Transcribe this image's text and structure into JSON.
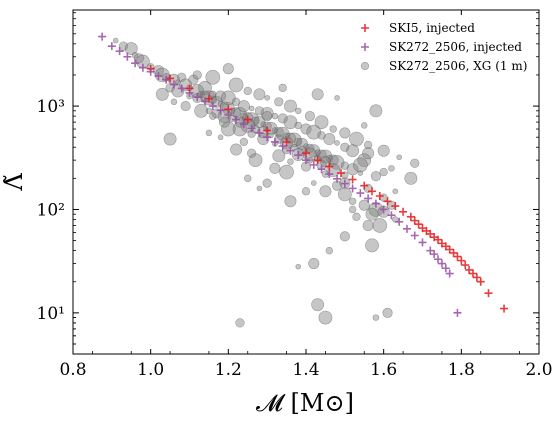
{
  "chart_data": {
    "type": "scatter",
    "xlabel": "𝓜 [M⊙]",
    "ylabel": "Λ̃",
    "xlim": [
      0.8,
      2.0
    ],
    "ylim": [
      4,
      8500
    ],
    "yscale": "log",
    "grid": false,
    "legend": "top-right",
    "x_ticks": [
      {
        "value": 0.8,
        "label": "0.8"
      },
      {
        "value": 1.0,
        "label": "1.0"
      },
      {
        "value": 1.2,
        "label": "1.2"
      },
      {
        "value": 1.4,
        "label": "1.4"
      },
      {
        "value": 1.6,
        "label": "1.6"
      },
      {
        "value": 1.8,
        "label": "1.8"
      },
      {
        "value": 2.0,
        "label": "2.0"
      }
    ],
    "y_ticks": [
      {
        "value": 10,
        "label": "10¹"
      },
      {
        "value": 100,
        "label": "10²"
      },
      {
        "value": 1000,
        "label": "10³"
      }
    ],
    "series": [
      {
        "name": "SK272_2506, XG (1 m)",
        "marker": "circle",
        "color": "#808080",
        "points": [
          [
            0.91,
            4300
          ],
          [
            0.93,
            3800
          ],
          [
            0.95,
            3600
          ],
          [
            0.96,
            3100
          ],
          [
            0.97,
            2900
          ],
          [
            0.98,
            2700
          ],
          [
            1.0,
            2400
          ],
          [
            1.02,
            2200
          ],
          [
            1.03,
            2000
          ],
          [
            1.04,
            1900
          ],
          [
            1.06,
            1800
          ],
          [
            1.07,
            1700
          ],
          [
            1.08,
            1900
          ],
          [
            1.09,
            1600
          ],
          [
            1.1,
            1500
          ],
          [
            1.11,
            1800
          ],
          [
            1.12,
            1400
          ],
          [
            1.13,
            1300
          ],
          [
            1.14,
            1250
          ],
          [
            1.15,
            1200
          ],
          [
            1.16,
            1150
          ],
          [
            1.17,
            1100
          ],
          [
            1.18,
            1050
          ],
          [
            1.19,
            1000
          ],
          [
            1.2,
            950
          ],
          [
            1.21,
            900
          ],
          [
            1.22,
            870
          ],
          [
            1.23,
            840
          ],
          [
            1.24,
            800
          ],
          [
            1.25,
            770
          ],
          [
            1.26,
            740
          ],
          [
            1.27,
            720
          ],
          [
            1.28,
            700
          ],
          [
            1.29,
            670
          ],
          [
            1.3,
            640
          ],
          [
            1.31,
            610
          ],
          [
            1.32,
            580
          ],
          [
            1.33,
            560
          ],
          [
            1.34,
            540
          ],
          [
            1.35,
            510
          ],
          [
            1.36,
            490
          ],
          [
            1.37,
            470
          ],
          [
            1.38,
            450
          ],
          [
            1.39,
            430
          ],
          [
            1.4,
            410
          ],
          [
            1.41,
            390
          ],
          [
            1.42,
            370
          ],
          [
            1.43,
            355
          ],
          [
            1.44,
            340
          ],
          [
            1.45,
            325
          ],
          [
            1.46,
            310
          ],
          [
            1.47,
            300
          ],
          [
            1.48,
            285
          ],
          [
            1.5,
            265
          ],
          [
            1.52,
            245
          ],
          [
            1.54,
            225
          ],
          [
            1.05,
            1500
          ],
          [
            1.07,
            1400
          ],
          [
            1.1,
            1250
          ],
          [
            1.12,
            1200
          ],
          [
            1.14,
            1500
          ],
          [
            1.16,
            1300
          ],
          [
            1.18,
            1250
          ],
          [
            1.2,
            1200
          ],
          [
            1.22,
            1100
          ],
          [
            1.24,
            1000
          ],
          [
            1.26,
            950
          ],
          [
            1.28,
            900
          ],
          [
            1.3,
            850
          ],
          [
            1.32,
            800
          ],
          [
            1.34,
            760
          ],
          [
            1.36,
            700
          ],
          [
            1.38,
            650
          ],
          [
            1.4,
            600
          ],
          [
            1.42,
            560
          ],
          [
            1.44,
            520
          ],
          [
            1.46,
            480
          ],
          [
            1.48,
            440
          ],
          [
            1.5,
            400
          ],
          [
            1.52,
            370
          ],
          [
            1.15,
            900
          ],
          [
            1.17,
            850
          ],
          [
            1.19,
            800
          ],
          [
            1.21,
            760
          ],
          [
            1.23,
            700
          ],
          [
            1.25,
            650
          ],
          [
            1.27,
            600
          ],
          [
            1.29,
            560
          ],
          [
            1.31,
            520
          ],
          [
            1.33,
            480
          ],
          [
            1.35,
            440
          ],
          [
            1.37,
            400
          ],
          [
            1.39,
            370
          ],
          [
            1.41,
            340
          ],
          [
            1.43,
            310
          ],
          [
            1.45,
            290
          ],
          [
            1.22,
            1600
          ],
          [
            1.25,
            1400
          ],
          [
            1.28,
            1300
          ],
          [
            1.3,
            1200
          ],
          [
            1.33,
            1100
          ],
          [
            1.36,
            1000
          ],
          [
            1.38,
            900
          ],
          [
            1.41,
            800
          ],
          [
            1.44,
            700
          ],
          [
            1.47,
            600
          ],
          [
            1.5,
            550
          ],
          [
            1.53,
            480
          ],
          [
            1.56,
            420
          ],
          [
            1.6,
            370
          ],
          [
            1.64,
            320
          ],
          [
            1.68,
            280
          ],
          [
            1.03,
            1300
          ],
          [
            1.06,
            1100
          ],
          [
            1.09,
            1000
          ],
          [
            1.13,
            900
          ],
          [
            1.16,
            800
          ],
          [
            1.19,
            700
          ],
          [
            1.23,
            600
          ],
          [
            1.26,
            540
          ],
          [
            1.29,
            480
          ],
          [
            1.32,
            430
          ],
          [
            1.35,
            380
          ],
          [
            1.38,
            340
          ],
          [
            1.41,
            300
          ],
          [
            1.44,
            270
          ],
          [
            1.47,
            240
          ],
          [
            1.5,
            215
          ],
          [
            1.2,
            2300
          ],
          [
            1.16,
            1900
          ],
          [
            1.34,
            1500
          ],
          [
            1.43,
            1300
          ],
          [
            1.48,
            1200
          ],
          [
            1.12,
            2000
          ],
          [
            1.58,
            900
          ],
          [
            1.55,
            650
          ],
          [
            1.48,
            170
          ],
          [
            1.5,
            140
          ],
          [
            1.52,
            120
          ],
          [
            1.55,
            110
          ],
          [
            1.58,
            100
          ],
          [
            1.6,
            130
          ],
          [
            1.45,
            150
          ],
          [
            1.42,
            180
          ],
          [
            1.62,
            110
          ],
          [
            1.57,
            90
          ],
          [
            1.63,
            80
          ],
          [
            1.5,
            55
          ],
          [
            1.57,
            45
          ],
          [
            1.46,
            40
          ],
          [
            1.42,
            30
          ],
          [
            1.59,
            70
          ],
          [
            1.53,
            85
          ],
          [
            1.6,
            95
          ],
          [
            1.63,
            150
          ],
          [
            1.56,
            160
          ],
          [
            1.67,
            200
          ],
          [
            1.62,
            250
          ],
          [
            1.58,
            210
          ],
          [
            1.55,
            300
          ],
          [
            1.25,
            200
          ],
          [
            1.32,
            250
          ],
          [
            1.35,
            230
          ],
          [
            1.4,
            150
          ],
          [
            1.36,
            120
          ],
          [
            1.28,
            160
          ],
          [
            1.3,
            180
          ],
          [
            1.05,
            480
          ],
          [
            1.15,
            550
          ],
          [
            1.3,
            800
          ],
          [
            1.27,
            300
          ],
          [
            1.45,
            220
          ],
          [
            1.5,
            180
          ],
          [
            1.54,
            270
          ],
          [
            1.6,
            230
          ],
          [
            1.56,
            350
          ],
          [
            1.38,
            28
          ],
          [
            1.23,
            8
          ],
          [
            1.43,
            12
          ],
          [
            1.58,
            9
          ],
          [
            1.61,
            10
          ],
          [
            1.45,
            9
          ],
          [
            1.52,
            100
          ],
          [
            1.56,
            70
          ],
          [
            1.2,
            600
          ],
          [
            1.24,
            450
          ],
          [
            1.22,
            380
          ],
          [
            1.18,
            500
          ],
          [
            1.26,
            350
          ],
          [
            1.33,
            330
          ],
          [
            1.36,
            290
          ],
          [
            1.4,
            260
          ]
        ]
      },
      {
        "name": "SKI5, injected",
        "marker": "plus",
        "color": "#e41a1c",
        "points": [
          [
            1.0,
            2300
          ],
          [
            1.05,
            1850
          ],
          [
            1.1,
            1480
          ],
          [
            1.15,
            1180
          ],
          [
            1.2,
            930
          ],
          [
            1.25,
            740
          ],
          [
            1.3,
            580
          ],
          [
            1.35,
            450
          ],
          [
            1.4,
            350
          ],
          [
            1.43,
            300
          ],
          [
            1.46,
            260
          ],
          [
            1.49,
            225
          ],
          [
            1.52,
            195
          ],
          [
            1.55,
            170
          ],
          [
            1.57,
            150
          ],
          [
            1.59,
            135
          ],
          [
            1.61,
            120
          ],
          [
            1.63,
            108
          ],
          [
            1.65,
            95
          ],
          [
            1.67,
            85
          ],
          [
            1.68,
            78
          ],
          [
            1.69,
            72
          ],
          [
            1.7,
            66
          ],
          [
            1.71,
            62
          ],
          [
            1.72,
            58
          ],
          [
            1.73,
            54
          ],
          [
            1.74,
            51
          ],
          [
            1.75,
            47
          ],
          [
            1.76,
            44
          ],
          [
            1.77,
            41
          ],
          [
            1.78,
            38
          ],
          [
            1.79,
            35
          ],
          [
            1.8,
            32
          ],
          [
            1.81,
            29
          ],
          [
            1.82,
            26
          ],
          [
            1.83,
            24
          ],
          [
            1.84,
            22
          ],
          [
            1.85,
            20
          ],
          [
            1.87,
            15.5
          ],
          [
            1.91,
            11
          ]
        ]
      },
      {
        "name": "SK272_2506, injected",
        "marker": "plus",
        "color": "#984ea3",
        "points": [
          [
            0.875,
            4700
          ],
          [
            0.9,
            3800
          ],
          [
            0.92,
            3400
          ],
          [
            0.94,
            3000
          ],
          [
            0.96,
            2600
          ],
          [
            0.98,
            2350
          ],
          [
            1.0,
            2150
          ],
          [
            1.02,
            1950
          ],
          [
            1.04,
            1800
          ],
          [
            1.06,
            1620
          ],
          [
            1.08,
            1480
          ],
          [
            1.1,
            1340
          ],
          [
            1.12,
            1220
          ],
          [
            1.14,
            1110
          ],
          [
            1.16,
            1000
          ],
          [
            1.18,
            910
          ],
          [
            1.2,
            820
          ],
          [
            1.22,
            740
          ],
          [
            1.24,
            670
          ],
          [
            1.26,
            610
          ],
          [
            1.28,
            550
          ],
          [
            1.3,
            500
          ],
          [
            1.32,
            450
          ],
          [
            1.34,
            410
          ],
          [
            1.36,
            370
          ],
          [
            1.38,
            335
          ],
          [
            1.4,
            300
          ],
          [
            1.42,
            270
          ],
          [
            1.44,
            245
          ],
          [
            1.46,
            220
          ],
          [
            1.48,
            198
          ],
          [
            1.5,
            178
          ],
          [
            1.52,
            160
          ],
          [
            1.54,
            144
          ],
          [
            1.56,
            128
          ],
          [
            1.58,
            114
          ],
          [
            1.6,
            100
          ],
          [
            1.62,
            88
          ],
          [
            1.64,
            76
          ],
          [
            1.66,
            65
          ],
          [
            1.68,
            56
          ],
          [
            1.7,
            48
          ],
          [
            1.72,
            40
          ],
          [
            1.73,
            37
          ],
          [
            1.74,
            33
          ],
          [
            1.75,
            30
          ],
          [
            1.76,
            27
          ],
          [
            1.77,
            24
          ],
          [
            1.79,
            10
          ]
        ]
      }
    ]
  }
}
